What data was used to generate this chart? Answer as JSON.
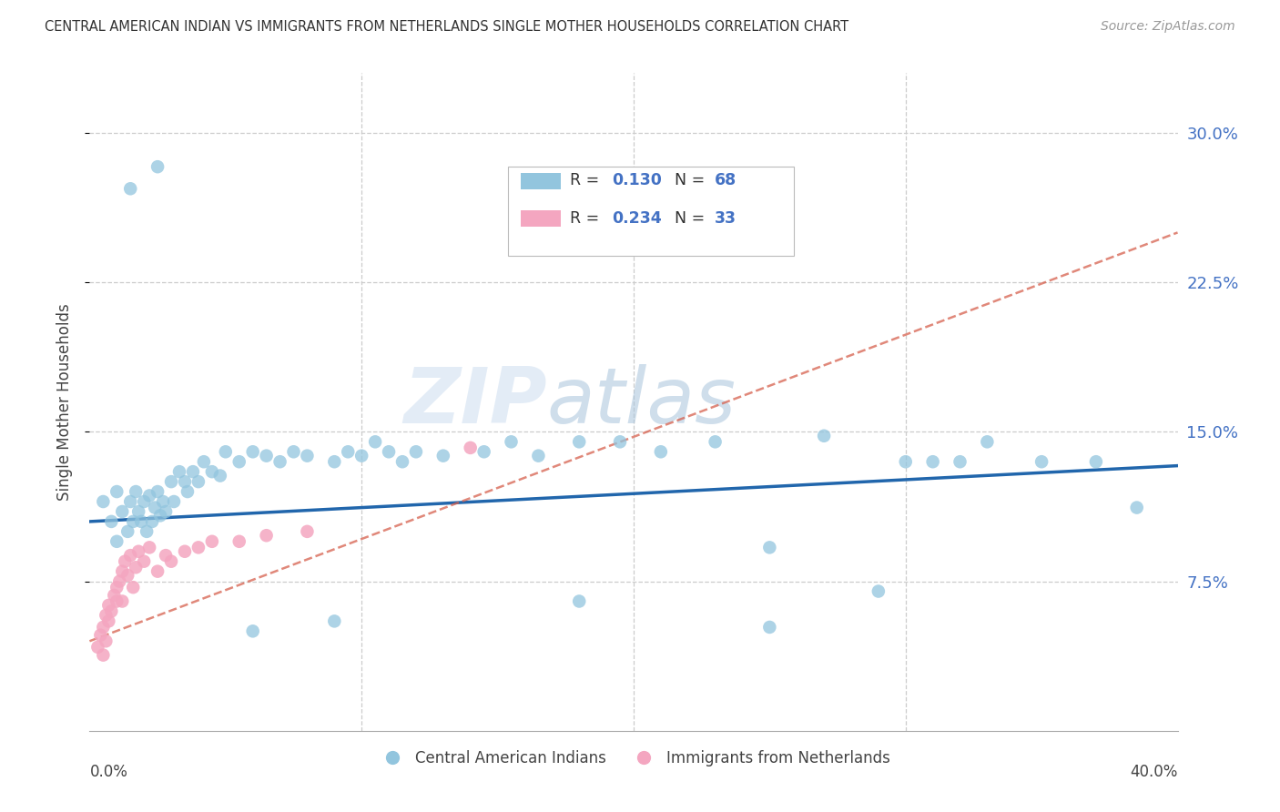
{
  "title": "CENTRAL AMERICAN INDIAN VS IMMIGRANTS FROM NETHERLANDS SINGLE MOTHER HOUSEHOLDS CORRELATION CHART",
  "source": "Source: ZipAtlas.com",
  "ylabel": "Single Mother Households",
  "ytick_vals": [
    0.075,
    0.15,
    0.225,
    0.3
  ],
  "xlim": [
    0.0,
    0.4
  ],
  "ylim": [
    0.0,
    0.33
  ],
  "blue_color": "#92c5de",
  "pink_color": "#f4a6c0",
  "blue_line_color": "#2166ac",
  "pink_line_color": "#d6604d",
  "watermark_zip": "ZIP",
  "watermark_atlas": "atlas",
  "blue_x": [
    0.005,
    0.008,
    0.01,
    0.01,
    0.012,
    0.014,
    0.015,
    0.016,
    0.017,
    0.018,
    0.019,
    0.02,
    0.021,
    0.022,
    0.023,
    0.024,
    0.025,
    0.026,
    0.027,
    0.028,
    0.03,
    0.031,
    0.033,
    0.035,
    0.036,
    0.038,
    0.04,
    0.042,
    0.045,
    0.048,
    0.05,
    0.055,
    0.06,
    0.065,
    0.07,
    0.075,
    0.08,
    0.09,
    0.095,
    0.1,
    0.105,
    0.11,
    0.115,
    0.12,
    0.13,
    0.145,
    0.155,
    0.165,
    0.18,
    0.195,
    0.21,
    0.23,
    0.25,
    0.27,
    0.29,
    0.31,
    0.33,
    0.35,
    0.37,
    0.385,
    0.3,
    0.32,
    0.25,
    0.18,
    0.09,
    0.06,
    0.025,
    0.015
  ],
  "blue_y": [
    0.115,
    0.105,
    0.12,
    0.095,
    0.11,
    0.1,
    0.115,
    0.105,
    0.12,
    0.11,
    0.105,
    0.115,
    0.1,
    0.118,
    0.105,
    0.112,
    0.12,
    0.108,
    0.115,
    0.11,
    0.125,
    0.115,
    0.13,
    0.125,
    0.12,
    0.13,
    0.125,
    0.135,
    0.13,
    0.128,
    0.14,
    0.135,
    0.14,
    0.138,
    0.135,
    0.14,
    0.138,
    0.135,
    0.14,
    0.138,
    0.145,
    0.14,
    0.135,
    0.14,
    0.138,
    0.14,
    0.145,
    0.138,
    0.145,
    0.145,
    0.14,
    0.145,
    0.092,
    0.148,
    0.07,
    0.135,
    0.145,
    0.135,
    0.135,
    0.112,
    0.135,
    0.135,
    0.052,
    0.065,
    0.055,
    0.05,
    0.283,
    0.272
  ],
  "pink_x": [
    0.003,
    0.004,
    0.005,
    0.005,
    0.006,
    0.006,
    0.007,
    0.007,
    0.008,
    0.009,
    0.01,
    0.01,
    0.011,
    0.012,
    0.012,
    0.013,
    0.014,
    0.015,
    0.016,
    0.017,
    0.018,
    0.02,
    0.022,
    0.025,
    0.028,
    0.03,
    0.035,
    0.04,
    0.045,
    0.055,
    0.065,
    0.08,
    0.14
  ],
  "pink_y": [
    0.042,
    0.048,
    0.038,
    0.052,
    0.045,
    0.058,
    0.055,
    0.063,
    0.06,
    0.068,
    0.072,
    0.065,
    0.075,
    0.08,
    0.065,
    0.085,
    0.078,
    0.088,
    0.072,
    0.082,
    0.09,
    0.085,
    0.092,
    0.08,
    0.088,
    0.085,
    0.09,
    0.092,
    0.095,
    0.095,
    0.098,
    0.1,
    0.142
  ],
  "blue_line_x0": 0.0,
  "blue_line_y0": 0.105,
  "blue_line_x1": 0.4,
  "blue_line_y1": 0.133,
  "pink_line_x0": 0.0,
  "pink_line_y0": 0.045,
  "pink_line_x1": 0.4,
  "pink_line_y1": 0.25
}
